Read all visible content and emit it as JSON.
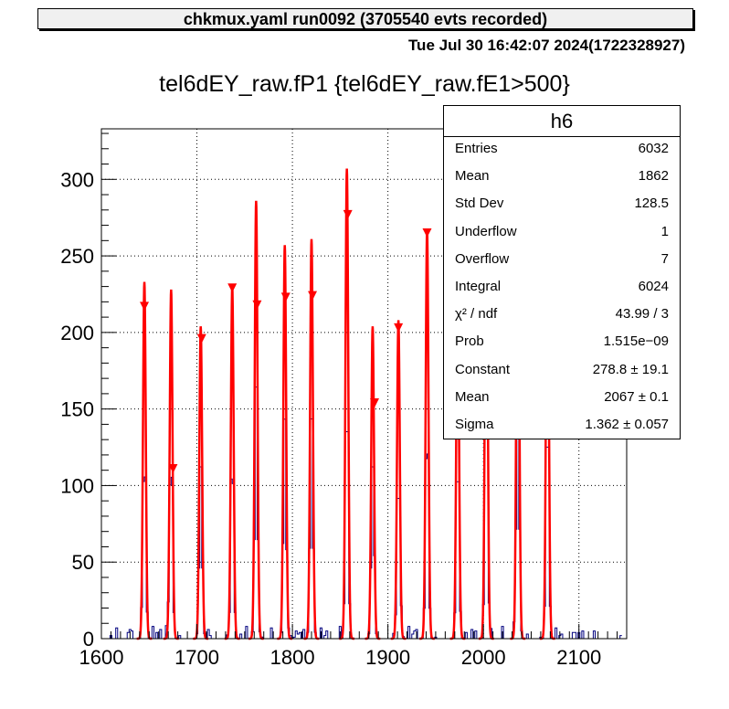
{
  "header": {
    "title": "chkmux.yaml  run0092 (3705540 evts recorded)"
  },
  "timestamp": "Tue Jul 30 16:42:07 2024(1722328927)",
  "plot_title": "tel6dEY_raw.fP1 {tel6dEY_raw.fE1>500}",
  "stats": {
    "name": "h6",
    "rows": [
      {
        "label": "Entries",
        "value": "6032"
      },
      {
        "label": "Mean",
        "value": "1862"
      },
      {
        "label": "Std Dev",
        "value": "128.5"
      },
      {
        "label": "Underflow",
        "value": "1"
      },
      {
        "label": "Overflow",
        "value": "7"
      },
      {
        "label": "Integral",
        "value": "6024"
      },
      {
        "label": "χ² / ndf",
        "value": "43.99 / 3"
      },
      {
        "label": "Prob",
        "value": "1.515e−09"
      },
      {
        "label": "Constant",
        "value": "278.8  ± 19.1"
      },
      {
        "label": "Mean",
        "value": "2067  ± 0.1"
      },
      {
        "label": "Sigma",
        "value": "1.362  ± 0.057"
      }
    ]
  },
  "colors": {
    "histogram": "#00007f",
    "fit": "#ff0000",
    "grid": "#000000"
  },
  "chart_data": {
    "type": "bar",
    "title": "tel6dEY_raw.fP1 {tel6dEY_raw.fE1>500}",
    "xlim": [
      1600,
      2150
    ],
    "ylim": [
      0,
      333
    ],
    "xticks": [
      1600,
      1700,
      1800,
      1900,
      2000,
      2100
    ],
    "yticks": [
      0,
      50,
      100,
      150,
      200,
      250,
      300
    ],
    "grid": true,
    "legend_position": "top-right",
    "peaks": [
      {
        "x": 1645,
        "height": 233
      },
      {
        "x": 1673,
        "height": 228
      },
      {
        "x": 1704,
        "height": 204
      },
      {
        "x": 1737,
        "height": 230
      },
      {
        "x": 1762,
        "height": 286
      },
      {
        "x": 1792,
        "height": 257
      },
      {
        "x": 1820,
        "height": 261
      },
      {
        "x": 1857,
        "height": 307
      },
      {
        "x": 1884,
        "height": 204
      },
      {
        "x": 1911,
        "height": 208
      },
      {
        "x": 1941,
        "height": 267
      },
      {
        "x": 1973,
        "height": 226
      },
      {
        "x": 2003,
        "height": 299
      },
      {
        "x": 2036,
        "height": 316
      },
      {
        "x": 2067,
        "height": 284
      }
    ],
    "markers": [
      {
        "x": 1645,
        "y": 217
      },
      {
        "x": 1675,
        "y": 111
      },
      {
        "x": 1705,
        "y": 196
      },
      {
        "x": 1737,
        "y": 229
      },
      {
        "x": 1763,
        "y": 218
      },
      {
        "x": 1793,
        "y": 223
      },
      {
        "x": 1821,
        "y": 224
      },
      {
        "x": 1858,
        "y": 277
      },
      {
        "x": 1886,
        "y": 154
      },
      {
        "x": 1911,
        "y": 203
      },
      {
        "x": 1941,
        "y": 265
      }
    ]
  }
}
